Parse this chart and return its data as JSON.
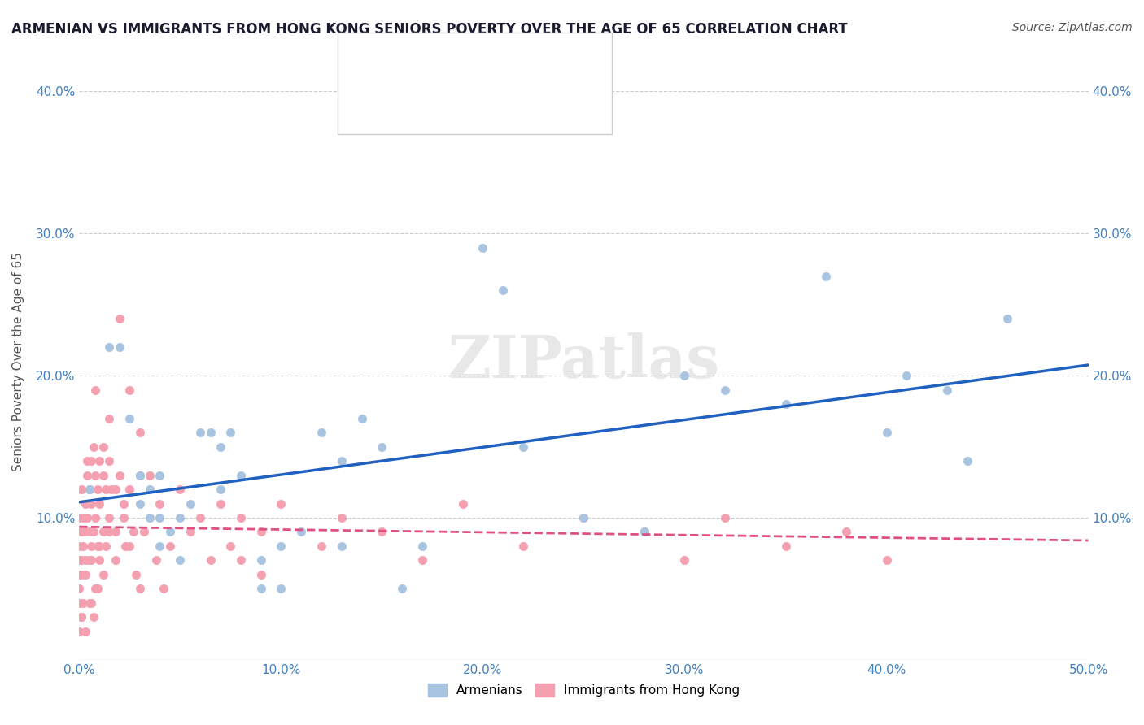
{
  "title": "ARMENIAN VS IMMIGRANTS FROM HONG KONG SENIORS POVERTY OVER THE AGE OF 65 CORRELATION CHART",
  "source": "Source: ZipAtlas.com",
  "ylabel": "Seniors Poverty Over the Age of 65",
  "xlabel": "",
  "xlim": [
    0.0,
    0.5
  ],
  "ylim": [
    0.0,
    0.42
  ],
  "xticks": [
    0.0,
    0.1,
    0.2,
    0.3,
    0.4,
    0.5
  ],
  "yticks": [
    0.0,
    0.1,
    0.2,
    0.3,
    0.4
  ],
  "xticklabels": [
    "0.0%",
    "10.0%",
    "20.0%",
    "30.0%",
    "40.0%",
    "50.0%"
  ],
  "yticklabels": [
    "",
    "10.0%",
    "20.0%",
    "30.0%",
    "40.0%"
  ],
  "grid_color": "#cccccc",
  "background_color": "#ffffff",
  "watermark": "ZIPatlas",
  "armenian_color": "#a8c4e0",
  "hk_color": "#f4a0b0",
  "armenian_line_color": "#2060c0",
  "hk_line_color": "#e05080",
  "armenian_x": [
    0.005,
    0.015,
    0.02,
    0.025,
    0.03,
    0.03,
    0.035,
    0.035,
    0.04,
    0.04,
    0.04,
    0.045,
    0.05,
    0.05,
    0.055,
    0.06,
    0.065,
    0.07,
    0.07,
    0.075,
    0.08,
    0.09,
    0.09,
    0.1,
    0.1,
    0.11,
    0.12,
    0.13,
    0.13,
    0.14,
    0.15,
    0.16,
    0.17,
    0.2,
    0.21,
    0.22,
    0.25,
    0.28,
    0.3,
    0.32,
    0.35,
    0.37,
    0.4,
    0.41,
    0.43,
    0.44,
    0.46
  ],
  "armenian_y": [
    0.12,
    0.22,
    0.22,
    0.17,
    0.13,
    0.11,
    0.12,
    0.1,
    0.13,
    0.1,
    0.08,
    0.09,
    0.1,
    0.07,
    0.11,
    0.16,
    0.16,
    0.15,
    0.12,
    0.16,
    0.13,
    0.07,
    0.05,
    0.08,
    0.05,
    0.09,
    0.16,
    0.14,
    0.08,
    0.17,
    0.15,
    0.05,
    0.08,
    0.29,
    0.26,
    0.15,
    0.1,
    0.09,
    0.2,
    0.19,
    0.18,
    0.27,
    0.16,
    0.2,
    0.19,
    0.14,
    0.24
  ],
  "hk_x": [
    0.0,
    0.0,
    0.0,
    0.0,
    0.0,
    0.001,
    0.001,
    0.001,
    0.001,
    0.002,
    0.002,
    0.003,
    0.003,
    0.003,
    0.004,
    0.004,
    0.005,
    0.005,
    0.005,
    0.006,
    0.006,
    0.006,
    0.007,
    0.007,
    0.008,
    0.008,
    0.009,
    0.009,
    0.01,
    0.01,
    0.01,
    0.012,
    0.012,
    0.013,
    0.013,
    0.015,
    0.015,
    0.016,
    0.018,
    0.02,
    0.022,
    0.023,
    0.025,
    0.027,
    0.03,
    0.03,
    0.04,
    0.045,
    0.05,
    0.055,
    0.06,
    0.065,
    0.07,
    0.075,
    0.08,
    0.08,
    0.09,
    0.09,
    0.1,
    0.12,
    0.13,
    0.15,
    0.17,
    0.19,
    0.22,
    0.25,
    0.28,
    0.3,
    0.32,
    0.35,
    0.38,
    0.4,
    0.02,
    0.025,
    0.03,
    0.035,
    0.008,
    0.012,
    0.015,
    0.018,
    0.004,
    0.006,
    0.007,
    0.009,
    0.0,
    0.001,
    0.002,
    0.003,
    0.0,
    0.001,
    0.003,
    0.005,
    0.006,
    0.008,
    0.01,
    0.012,
    0.015,
    0.018,
    0.022,
    0.025,
    0.028,
    0.032,
    0.038,
    0.042
  ],
  "hk_y": [
    0.08,
    0.07,
    0.06,
    0.1,
    0.04,
    0.09,
    0.07,
    0.12,
    0.06,
    0.1,
    0.08,
    0.11,
    0.09,
    0.07,
    0.13,
    0.1,
    0.12,
    0.09,
    0.07,
    0.14,
    0.11,
    0.08,
    0.15,
    0.09,
    0.13,
    0.1,
    0.12,
    0.08,
    0.14,
    0.11,
    0.07,
    0.13,
    0.09,
    0.12,
    0.08,
    0.14,
    0.1,
    0.12,
    0.09,
    0.13,
    0.11,
    0.08,
    0.12,
    0.09,
    0.13,
    0.05,
    0.11,
    0.08,
    0.12,
    0.09,
    0.1,
    0.07,
    0.11,
    0.08,
    0.1,
    0.07,
    0.09,
    0.06,
    0.11,
    0.08,
    0.1,
    0.09,
    0.07,
    0.11,
    0.08,
    0.1,
    0.09,
    0.07,
    0.1,
    0.08,
    0.09,
    0.07,
    0.24,
    0.19,
    0.16,
    0.13,
    0.19,
    0.15,
    0.17,
    0.12,
    0.14,
    0.04,
    0.03,
    0.05,
    0.02,
    0.03,
    0.04,
    0.02,
    0.05,
    0.03,
    0.06,
    0.04,
    0.07,
    0.05,
    0.08,
    0.06,
    0.09,
    0.07,
    0.1,
    0.08,
    0.06,
    0.09,
    0.07,
    0.05
  ]
}
